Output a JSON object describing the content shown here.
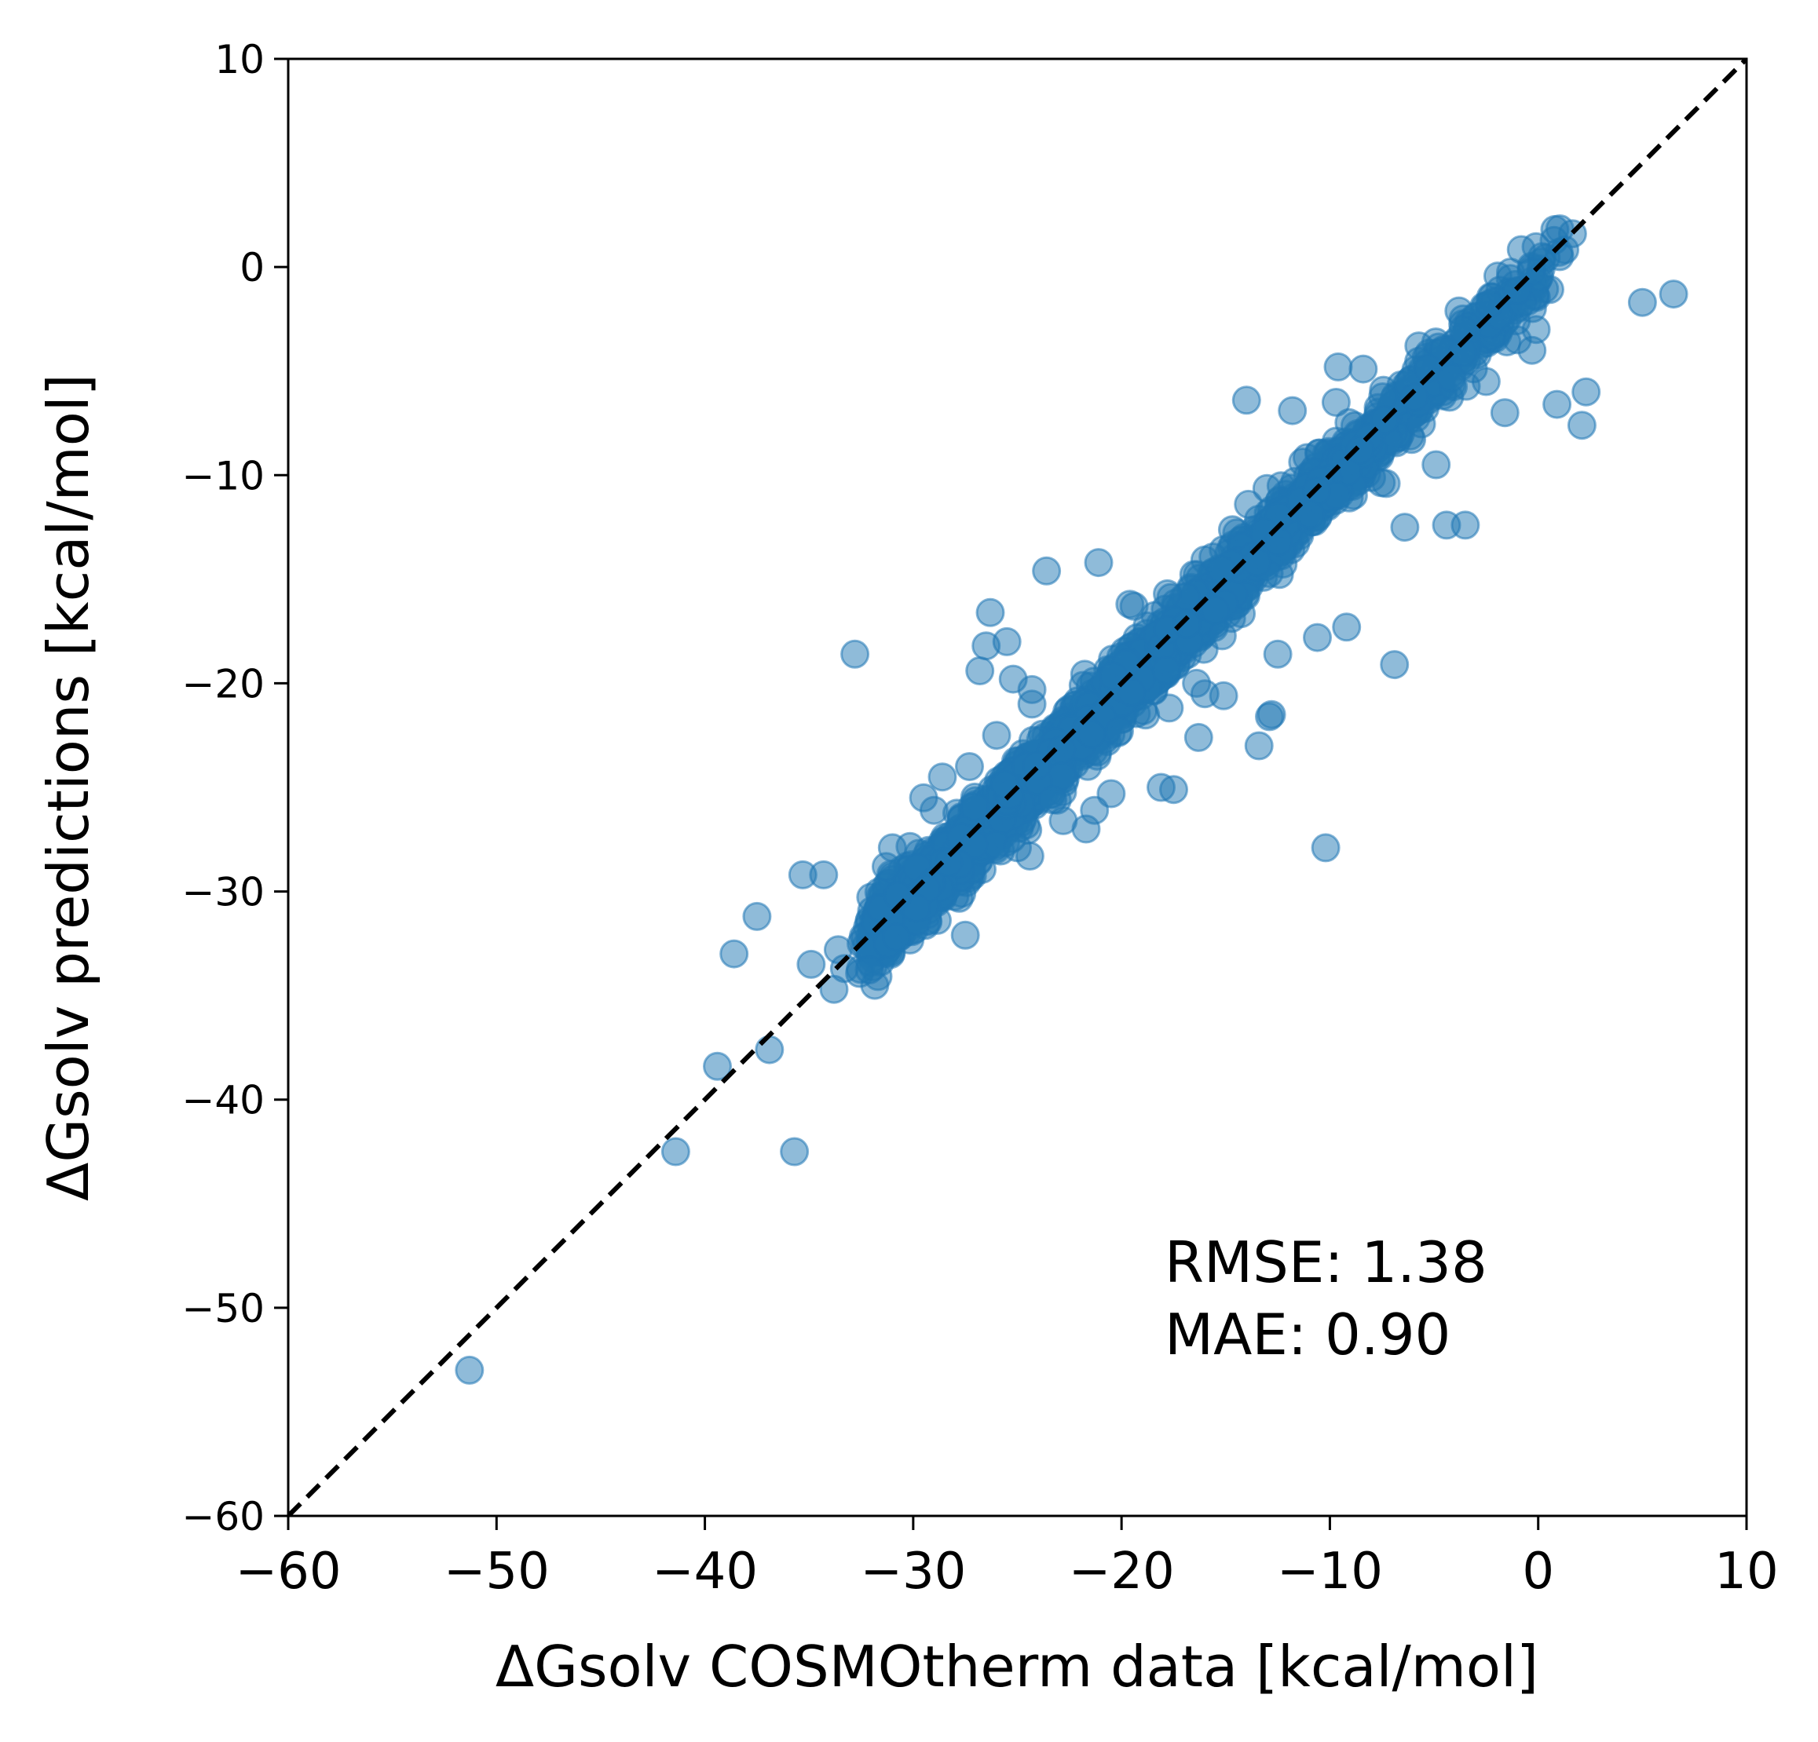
{
  "chart_data": {
    "type": "scatter",
    "xlabel": "ΔGsolv COSMOtherm data [kcal/mol]",
    "ylabel": "ΔGsolv predictions [kcal/mol]",
    "xlim": [
      -60,
      10
    ],
    "ylim": [
      -60,
      10
    ],
    "xticks": [
      -60,
      -50,
      -40,
      -30,
      -20,
      -10,
      0,
      10
    ],
    "yticks": [
      -60,
      -50,
      -40,
      -30,
      -20,
      -10,
      0,
      10
    ],
    "xtick_labels": [
      "−60",
      "−50",
      "−40",
      "−30",
      "−20",
      "−10",
      "0",
      "10"
    ],
    "ytick_labels": [
      "−60",
      "−50",
      "−40",
      "−30",
      "−20",
      "−10",
      "0",
      "10"
    ],
    "grid": false,
    "reference_line": {
      "style": "dashed",
      "color": "#000000",
      "x": [
        -60,
        10
      ],
      "y": [
        -60,
        10
      ]
    },
    "annotations": {
      "rmse": "RMSE: 1.38",
      "mae": "MAE: 0.90"
    },
    "marker_color": "#1f77b4",
    "marker_alpha": 0.5,
    "dense_cloud": {
      "x_range": [
        -32,
        1.5
      ],
      "trend": "y ≈ x",
      "spread": 1.4
    },
    "outliers": [
      [
        -51.3,
        -53.0
      ],
      [
        -41.4,
        -42.5
      ],
      [
        -35.7,
        -42.5
      ],
      [
        -39.4,
        -38.4
      ],
      [
        -36.9,
        -37.6
      ],
      [
        -38.6,
        -33.0
      ],
      [
        -37.5,
        -31.2
      ],
      [
        -35.3,
        -29.2
      ],
      [
        -34.3,
        -29.2
      ],
      [
        -34.9,
        -33.5
      ],
      [
        -33.6,
        -32.8
      ],
      [
        -33.3,
        -33.7
      ],
      [
        -33.8,
        -34.7
      ],
      [
        -32.8,
        -18.6
      ],
      [
        -30.8,
        -32.2
      ],
      [
        -27.5,
        -32.1
      ],
      [
        -31.3,
        -28.8
      ],
      [
        -31.0,
        -27.9
      ],
      [
        -10.2,
        -27.9
      ],
      [
        -18.1,
        -25.0
      ],
      [
        -17.5,
        -25.1
      ],
      [
        -13.4,
        -23.0
      ],
      [
        -12.9,
        -21.6
      ],
      [
        -23.6,
        -14.6
      ],
      [
        -26.3,
        -16.6
      ],
      [
        -4.4,
        -12.4
      ],
      [
        -3.5,
        -12.4
      ],
      [
        -14.0,
        -6.4
      ],
      [
        -11.8,
        -6.9
      ],
      [
        2.3,
        -6.0
      ],
      [
        2.1,
        -7.6
      ],
      [
        0.9,
        -6.6
      ],
      [
        -1.6,
        -7.0
      ],
      [
        5.0,
        -1.7
      ],
      [
        6.5,
        -1.3
      ],
      [
        0.8,
        1.8
      ],
      [
        -1.0,
        -3.5
      ],
      [
        -9.6,
        -4.8
      ],
      [
        -8.4,
        -4.9
      ],
      [
        -21.1,
        -14.2
      ],
      [
        -19.6,
        -16.2
      ],
      [
        -6.9,
        -19.1
      ],
      [
        -15.1,
        -20.6
      ],
      [
        -16.3,
        -22.6
      ],
      [
        -26.8,
        -19.4
      ],
      [
        -26.5,
        -18.2
      ],
      [
        -25.5,
        -18.0
      ],
      [
        -26.0,
        -22.5
      ],
      [
        -24.3,
        -21.0
      ],
      [
        -24.3,
        -20.3
      ],
      [
        -25.2,
        -19.8
      ],
      [
        -20.5,
        -25.3
      ],
      [
        -21.3,
        -26.1
      ],
      [
        -21.7,
        -27.0
      ],
      [
        -24.4,
        -28.3
      ],
      [
        -25.0,
        -27.9
      ],
      [
        -27.8,
        -28.7
      ],
      [
        -28.3,
        -28.6
      ],
      [
        -29.0,
        -26.1
      ],
      [
        -29.5,
        -25.5
      ],
      [
        -28.6,
        -24.5
      ],
      [
        -27.3,
        -24.0
      ],
      [
        -23.3,
        -25.6
      ],
      [
        -22.8,
        -26.6
      ],
      [
        -2.5,
        -5.5
      ],
      [
        -0.3,
        -4.0
      ],
      [
        -0.1,
        -3.0
      ],
      [
        -4.9,
        -9.5
      ],
      [
        -6.4,
        -12.5
      ],
      [
        -10.6,
        -17.8
      ],
      [
        -9.2,
        -17.3
      ],
      [
        -12.5,
        -18.6
      ],
      [
        -17.8,
        -15.7
      ],
      [
        -19.4,
        -16.3
      ],
      [
        -9.7,
        -6.5
      ],
      [
        -7.3,
        -10.4
      ],
      [
        -12.8,
        -21.5
      ],
      [
        -16.0,
        -20.5
      ],
      [
        -20.1,
        -22.3
      ],
      [
        -16.4,
        -20.0
      ]
    ]
  }
}
